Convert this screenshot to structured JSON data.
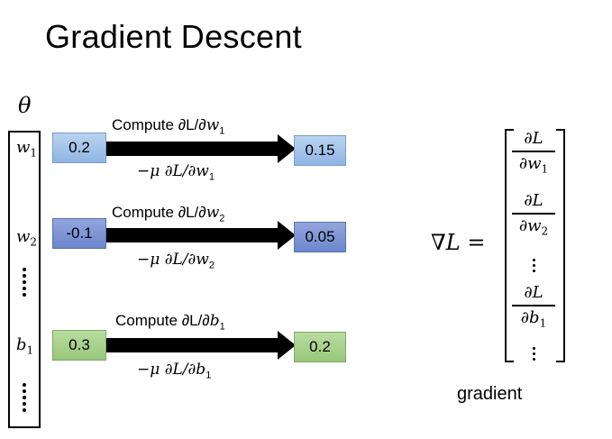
{
  "title": "Gradient Descent",
  "theta_symbol": "θ",
  "params": [
    {
      "sym": "w",
      "sub": "1",
      "value": "0.2",
      "compute_prefix": "Compute ∂L/∂",
      "update_prefix": "−μ ∂L/∂",
      "new_value": "0.15"
    },
    {
      "sym": "w",
      "sub": "2",
      "value": "-0.1",
      "compute_prefix": "Compute ∂L/∂",
      "update_prefix": "−μ ∂L/∂",
      "new_value": "0.05"
    },
    {
      "sym": "b",
      "sub": "1",
      "value": "0.3",
      "compute_prefix": "Compute ∂L/∂",
      "update_prefix": "−μ ∂L/∂",
      "new_value": "0.2"
    }
  ],
  "gradient_symbol": "∇L =",
  "gradient_entries": [
    {
      "num": "∂L",
      "den_sym": "∂w",
      "den_sub": "1"
    },
    {
      "num": "∂L",
      "den_sym": "∂w",
      "den_sub": "2"
    },
    {
      "num": "∂L",
      "den_sym": "∂b",
      "den_sub": "1"
    }
  ],
  "gradient_label": "gradient",
  "colors": {
    "w1_box": "#9dc0ea",
    "w2_box": "#7a92d3",
    "b1_box": "#a7d08b"
  }
}
